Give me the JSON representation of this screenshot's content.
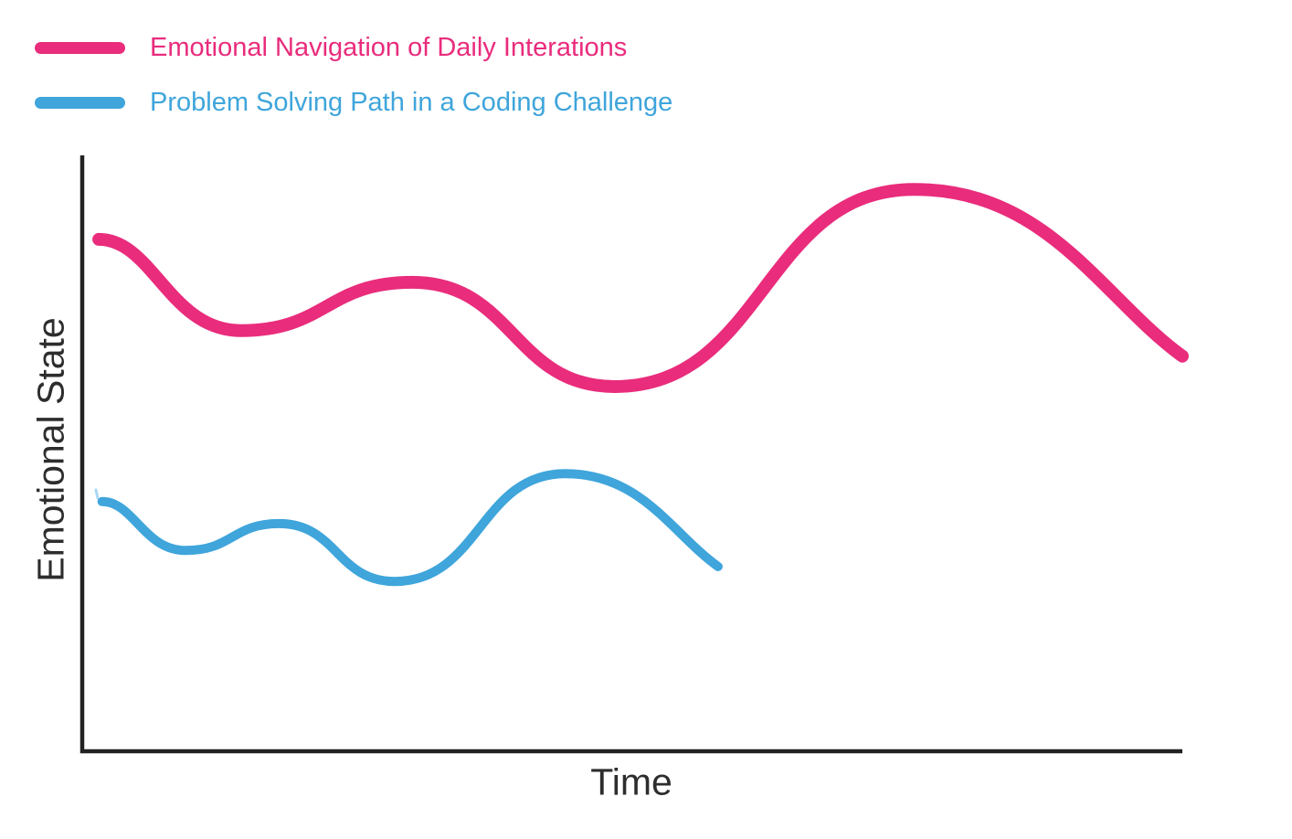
{
  "axes": {
    "x_label": "Time",
    "y_label": "Emotional State",
    "line_color": "#222222",
    "label_color": "#2d2d2d"
  },
  "chart_data": {
    "type": "line",
    "title": "",
    "xlabel": "Time",
    "ylabel": "Emotional State",
    "x_ticks": [],
    "y_ticks": [],
    "grid": false,
    "legend_position": "top-left",
    "axis_ranges": {
      "x": [
        0,
        10
      ],
      "y": [
        0,
        10
      ]
    },
    "series": [
      {
        "name": "Emotional Navigation of Daily Interations",
        "color": "#E92C7C",
        "stroke_width": 14,
        "shape": "smooth",
        "points": [
          [
            0.15,
            8.59
          ],
          [
            1.44,
            7.06
          ],
          [
            3.0,
            7.87
          ],
          [
            4.84,
            6.12
          ],
          [
            7.56,
            9.43
          ],
          [
            10.0,
            6.63
          ]
        ]
      },
      {
        "name": "Problem Solving Path in a Coding Challenge",
        "color": "#3FA5DB",
        "stroke_width": 10,
        "shape": "smooth",
        "points": [
          [
            0.18,
            4.19
          ],
          [
            0.94,
            3.37
          ],
          [
            1.79,
            3.82
          ],
          [
            2.84,
            2.85
          ],
          [
            4.39,
            4.66
          ],
          [
            5.78,
            3.1
          ]
        ]
      }
    ]
  }
}
